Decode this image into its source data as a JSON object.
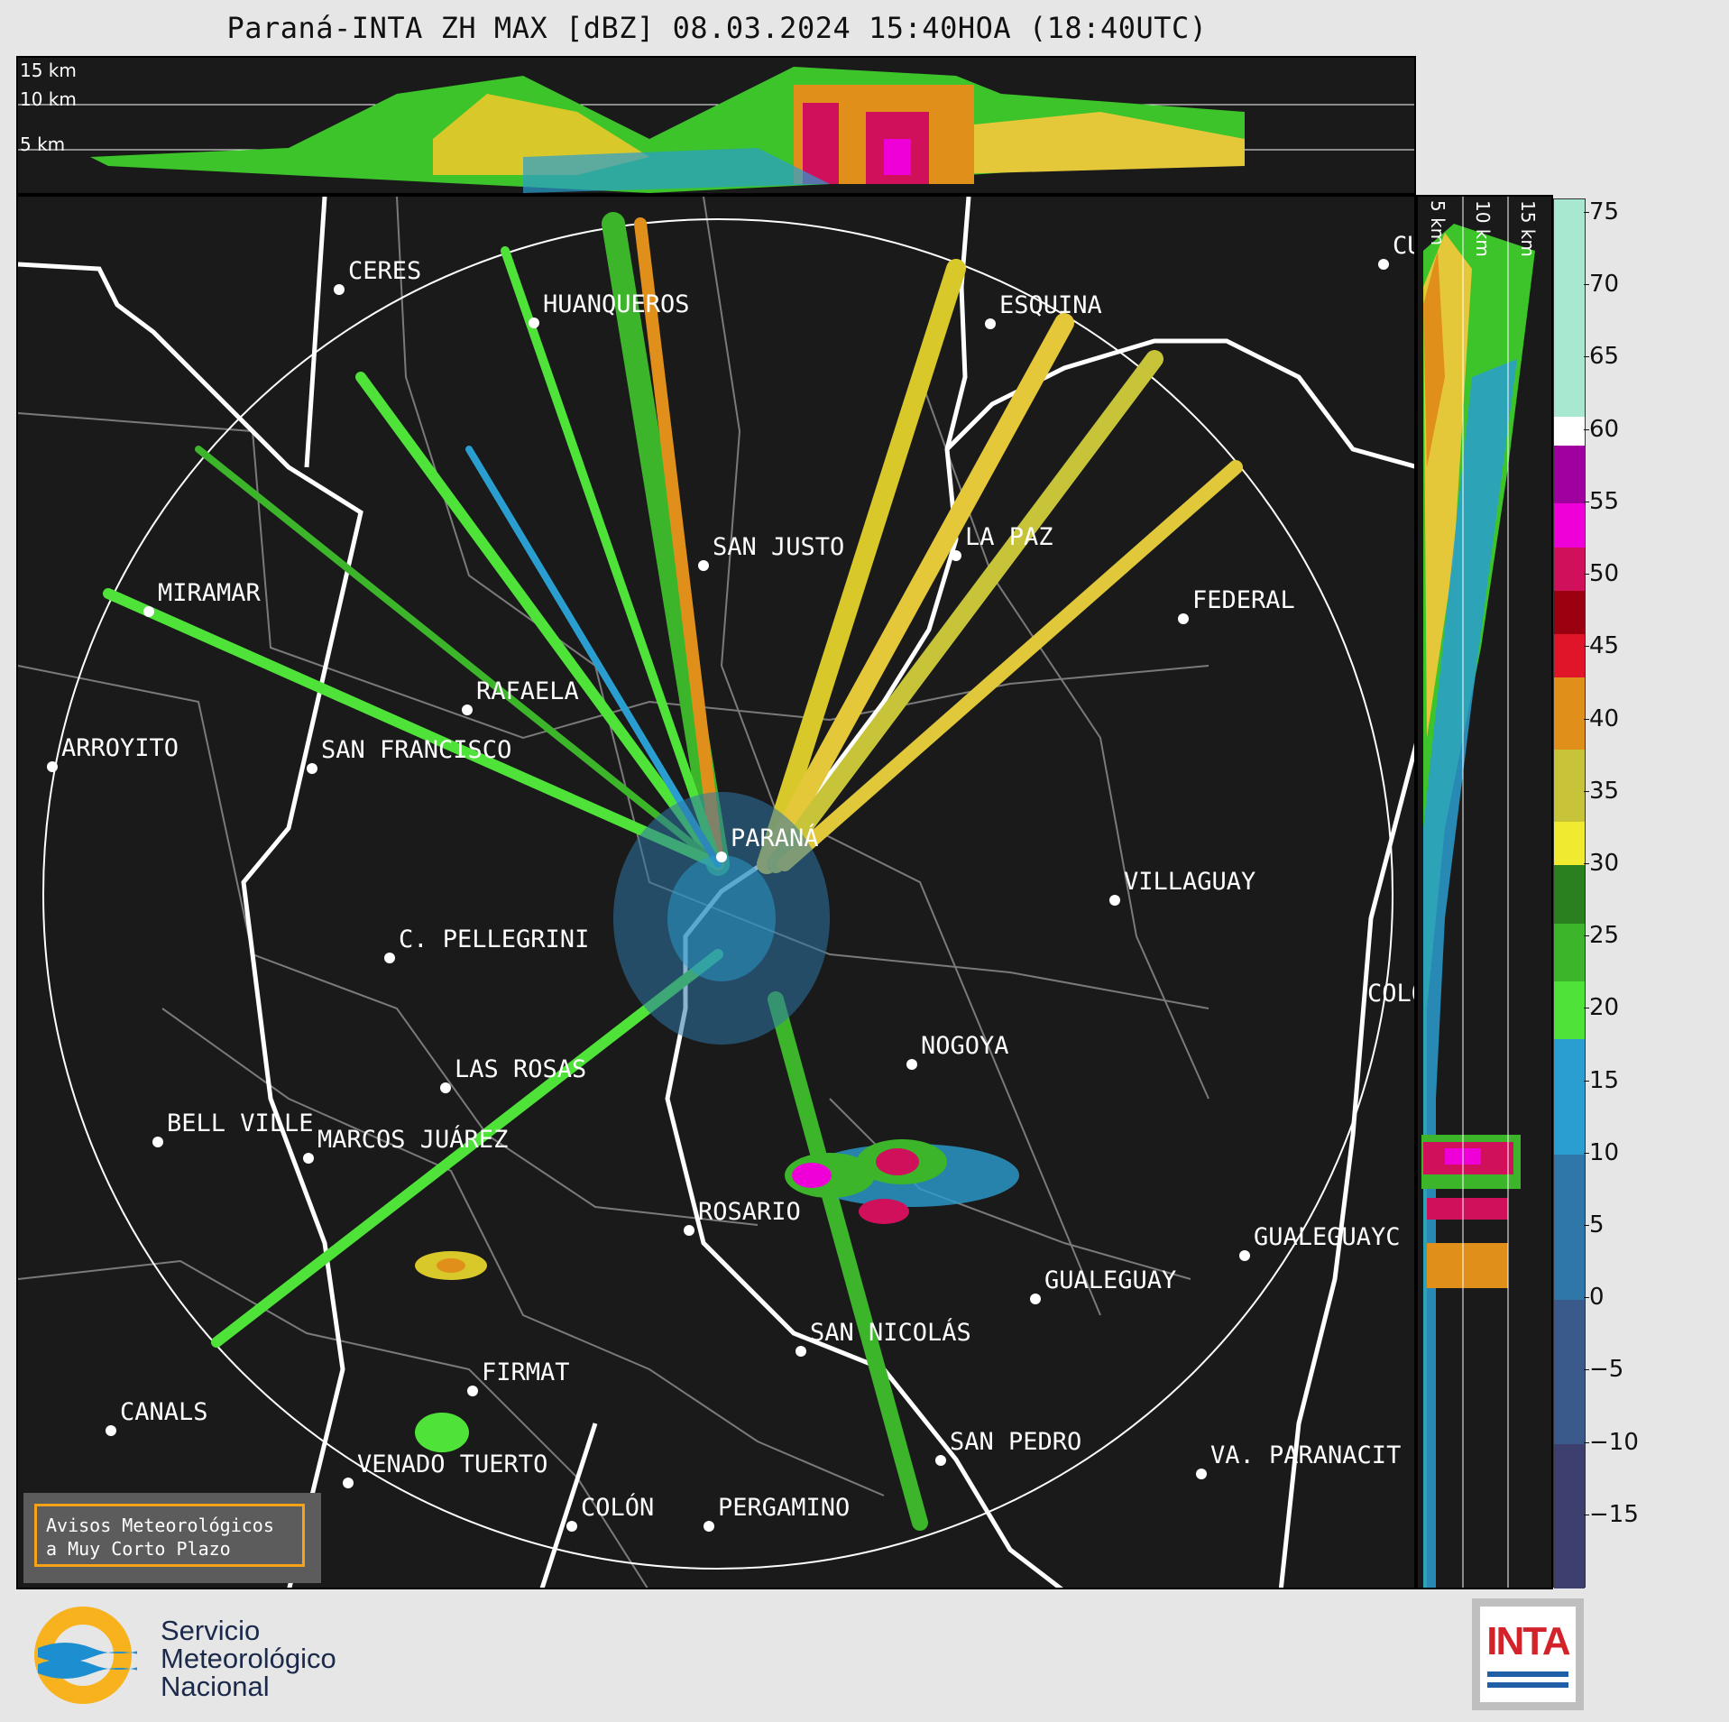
{
  "title": "Paraná-INTA ZH MAX [dBZ] 08.03.2024 15:40HOA (18:40UTC)",
  "height_labels": [
    "15 km",
    "10 km",
    "5 km"
  ],
  "side_height_labels": [
    "5 km",
    "10 km",
    "15 km"
  ],
  "colorbar": {
    "unit": "dBZ",
    "ticks": [
      "75",
      "70",
      "65",
      "60",
      "55",
      "50",
      "45",
      "40",
      "35",
      "30",
      "25",
      "20",
      "15",
      "10",
      "5",
      "0",
      "−5",
      "−10",
      "−15"
    ],
    "min": -20,
    "max": 76,
    "colors": [
      {
        "from": -20,
        "to": -10,
        "color": "#3d3f6e"
      },
      {
        "from": -10,
        "to": 0,
        "color": "#3b5a8c"
      },
      {
        "from": 0,
        "to": 10,
        "color": "#2f77a8"
      },
      {
        "from": 10,
        "to": 18,
        "color": "#2a9ed0"
      },
      {
        "from": 18,
        "to": 22,
        "color": "#4fe33a"
      },
      {
        "from": 22,
        "to": 26,
        "color": "#3cb52a"
      },
      {
        "from": 26,
        "to": 30,
        "color": "#2a7f1e"
      },
      {
        "from": 30,
        "to": 33,
        "color": "#f0ea30"
      },
      {
        "from": 33,
        "to": 38,
        "color": "#c8c43a"
      },
      {
        "from": 38,
        "to": 43,
        "color": "#e0901a"
      },
      {
        "from": 43,
        "to": 46,
        "color": "#e0152a"
      },
      {
        "from": 46,
        "to": 49,
        "color": "#9a0010"
      },
      {
        "from": 49,
        "to": 52,
        "color": "#d0105a"
      },
      {
        "from": 52,
        "to": 55,
        "color": "#f000d8"
      },
      {
        "from": 55,
        "to": 59,
        "color": "#a000a0"
      },
      {
        "from": 59,
        "to": 61,
        "color": "#ffffff"
      },
      {
        "from": 61,
        "to": 76,
        "color": "#a8e8d0"
      }
    ]
  },
  "cities": [
    {
      "name": "CERES"
    },
    {
      "name": "HUANQUEROS"
    },
    {
      "name": "ESQUINA"
    },
    {
      "name": "CU"
    },
    {
      "name": "SAN JUSTO"
    },
    {
      "name": "LA PAZ"
    },
    {
      "name": "MIRAMAR"
    },
    {
      "name": "FEDERAL"
    },
    {
      "name": "RAFAELA"
    },
    {
      "name": "ARROYITO"
    },
    {
      "name": "SAN FRANCISCO"
    },
    {
      "name": "PARANÁ"
    },
    {
      "name": "VILLAGUAY"
    },
    {
      "name": "C. PELLEGRINI"
    },
    {
      "name": "COLÓ"
    },
    {
      "name": "NOGOYA"
    },
    {
      "name": "LAS ROSAS"
    },
    {
      "name": "BELL VILLE"
    },
    {
      "name": "MARCOS JUÁREZ"
    },
    {
      "name": "ROSARIO"
    },
    {
      "name": "GUALEGUAYC"
    },
    {
      "name": "GUALEGUAY"
    },
    {
      "name": "SAN NICOLÁS"
    },
    {
      "name": "FIRMAT"
    },
    {
      "name": "CANALS"
    },
    {
      "name": "SAN PEDRO"
    },
    {
      "name": "VENADO TUERTO"
    },
    {
      "name": "VA. PARANACIT"
    },
    {
      "name": "COLÓN"
    },
    {
      "name": "PERGAMINO"
    }
  ],
  "warning": {
    "line1": "Avisos Meteorológicos",
    "line2": "a Muy Corto Plazo"
  },
  "smn": {
    "line1": "Servicio",
    "line2": "Meteorológico",
    "line3": "Nacional"
  },
  "inta": {
    "text": "INTA"
  },
  "colors": {
    "map_bg": "#1a1a1a",
    "page_bg": "#e6e6e6",
    "accent": "#f5a318"
  }
}
